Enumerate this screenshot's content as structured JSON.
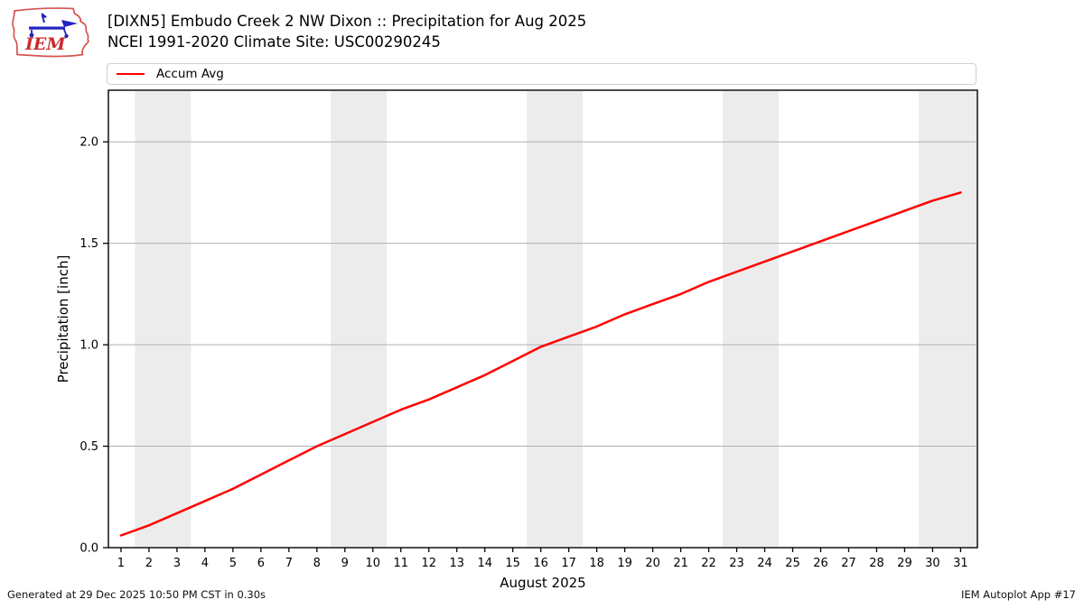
{
  "header": {
    "title_line1": "[DIXN5] Embudo Creek 2 NW Dixon :: Precipitation for Aug 2025",
    "title_line2": "NCEI 1991-2020 Climate Site: USC00290245",
    "logo_text": "IEM"
  },
  "legend": {
    "items": [
      {
        "label": "Accum Avg",
        "color": "#ff0000"
      }
    ]
  },
  "chart_data": {
    "type": "line",
    "title": "[DIXN5] Embudo Creek 2 NW Dixon :: Precipitation for Aug 2025",
    "subtitle": "NCEI 1991-2020 Climate Site: USC00290245",
    "xlabel": "August 2025",
    "ylabel": "Precipitation [inch]",
    "x": [
      1,
      2,
      3,
      4,
      5,
      6,
      7,
      8,
      9,
      10,
      11,
      12,
      13,
      14,
      15,
      16,
      17,
      18,
      19,
      20,
      21,
      22,
      23,
      24,
      25,
      26,
      27,
      28,
      29,
      30,
      31
    ],
    "series": [
      {
        "name": "Accum Avg",
        "color": "#ff0000",
        "values": [
          0.06,
          0.11,
          0.17,
          0.23,
          0.29,
          0.36,
          0.43,
          0.5,
          0.56,
          0.62,
          0.68,
          0.73,
          0.79,
          0.85,
          0.92,
          0.99,
          1.04,
          1.09,
          1.15,
          1.2,
          1.25,
          1.31,
          1.36,
          1.41,
          1.46,
          1.51,
          1.56,
          1.61,
          1.66,
          1.71,
          1.75
        ]
      }
    ],
    "xlim": [
      0.55,
      31.6
    ],
    "ylim": [
      0,
      2.25
    ],
    "yticks": [
      0.0,
      0.5,
      1.0,
      1.5,
      2.0
    ],
    "ytick_labels": [
      "0.0",
      "0.5",
      "1.0",
      "1.5",
      "2.0"
    ],
    "grid": "horizontal",
    "legend_position": "top",
    "weekend_bands": [
      [
        1.5,
        3.5
      ],
      [
        8.5,
        10.5
      ],
      [
        15.5,
        17.5
      ],
      [
        22.5,
        24.5
      ],
      [
        29.5,
        31.6
      ]
    ],
    "colors": {
      "line": "#ff0000",
      "band": "#ececec",
      "grid": "#b0b0b0",
      "axis": "#000000"
    }
  },
  "footer": {
    "left": "Generated at 29 Dec 2025 10:50 PM CST in 0.30s",
    "right": "IEM Autoplot App #17"
  }
}
